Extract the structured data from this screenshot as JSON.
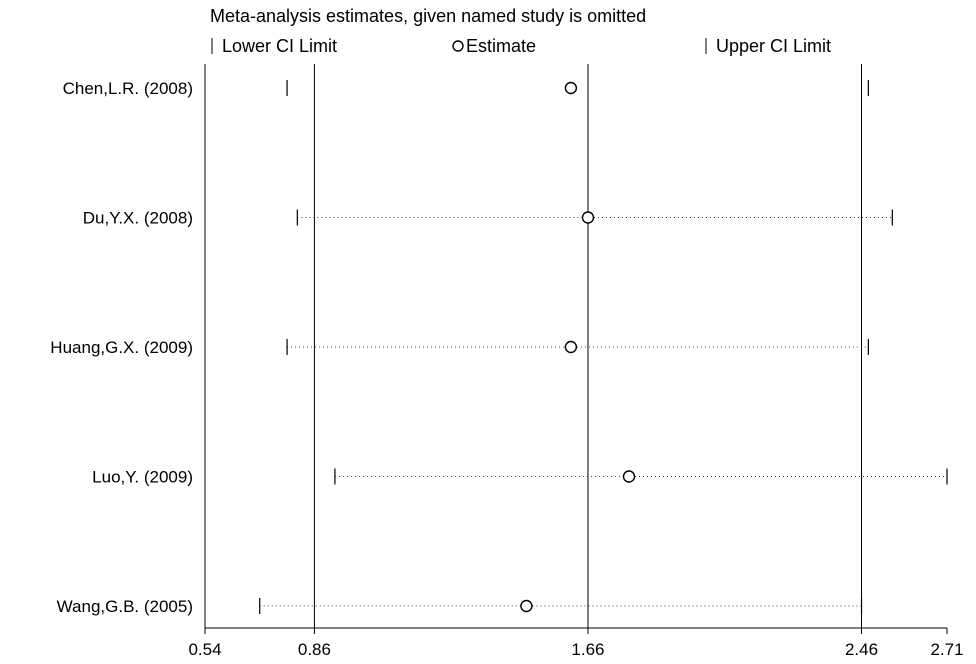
{
  "chart_data": {
    "type": "forest",
    "title": "Meta-analysis estimates, given named study is omitted",
    "legend": {
      "lower_label": "Lower CI Limit",
      "estimate_label": "Estimate",
      "upper_label": "Upper CI Limit",
      "placement": "top"
    },
    "x_ticks": [
      0.54,
      0.86,
      1.66,
      2.46,
      2.71
    ],
    "x_tick_labels": [
      "0.54",
      "0.86",
      "1.66",
      "2.46",
      "2.71"
    ],
    "xlim": [
      0.54,
      2.71
    ],
    "reference_lines": [
      0.86,
      1.66,
      2.46
    ],
    "studies": [
      {
        "label": "Chen,L.R. (2008)",
        "lower": 0.78,
        "estimate": 1.61,
        "upper": 2.48,
        "dotted": false
      },
      {
        "label": "Du,Y.X. (2008)",
        "lower": 0.81,
        "estimate": 1.66,
        "upper": 2.55,
        "dotted": true
      },
      {
        "label": "Huang,G.X. (2009)",
        "lower": 0.78,
        "estimate": 1.61,
        "upper": 2.48,
        "dotted": true
      },
      {
        "label": "Luo,Y. (2009)",
        "lower": 0.92,
        "estimate": 1.78,
        "upper": 2.71,
        "dotted": true
      },
      {
        "label": "Wang,G.B. (2005)",
        "lower": 0.7,
        "estimate": 1.48,
        "upper": 2.46,
        "dotted": true
      }
    ]
  }
}
